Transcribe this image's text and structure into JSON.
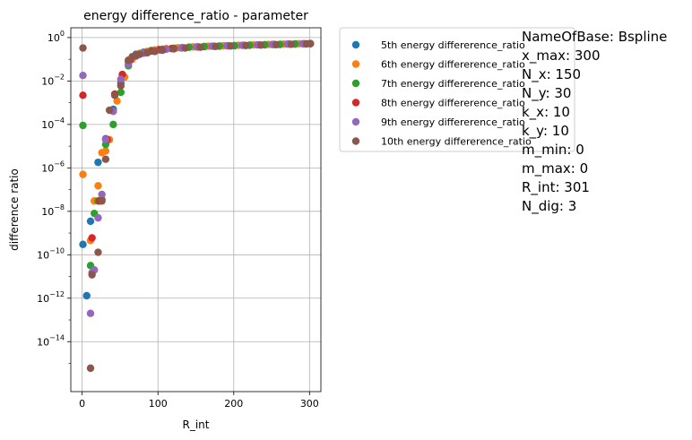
{
  "chart_data": {
    "type": "scatter",
    "title": "energy difference_ratio - parameter",
    "xlabel": "R_int",
    "ylabel": "difference ratio",
    "xlim": [
      -15,
      315
    ],
    "ylim_log10": [
      -16.3,
      0.45
    ],
    "yscale": "log",
    "grid": true,
    "legend_placement": "outside-right",
    "x_ticks": [
      0,
      100,
      200,
      300
    ],
    "x_tick_labels": [
      "0",
      "100",
      "200",
      "300"
    ],
    "y_ticks_log10": [
      0,
      -2,
      -4,
      -6,
      -8,
      -10,
      -12,
      -14
    ],
    "y_tick_labels": [
      {
        "base": "10",
        "exp": "0"
      },
      {
        "base": "10",
        "exp": "−2"
      },
      {
        "base": "10",
        "exp": "−4"
      },
      {
        "base": "10",
        "exp": "−6"
      },
      {
        "base": "10",
        "exp": "−8"
      },
      {
        "base": "10",
        "exp": "−10"
      },
      {
        "base": "10",
        "exp": "−12"
      },
      {
        "base": "10",
        "exp": "−14"
      }
    ],
    "series": [
      {
        "name": "5th energy differerence_ratio",
        "color": "#1f77b4",
        "points": [
          [
            1,
            3e-10
          ],
          [
            6,
            1.3e-12
          ],
          [
            11,
            3.5e-09
          ],
          [
            21,
            1.8e-06
          ],
          [
            31,
            2.2e-05
          ],
          [
            41,
            0.0005
          ],
          [
            51,
            0.008
          ],
          [
            61,
            0.08
          ],
          [
            71,
            0.17
          ],
          [
            81,
            0.21
          ],
          [
            91,
            0.25
          ],
          [
            101,
            0.28
          ],
          [
            111,
            0.3
          ],
          [
            121,
            0.32
          ],
          [
            131,
            0.34
          ],
          [
            141,
            0.36
          ],
          [
            161,
            0.38
          ],
          [
            181,
            0.4
          ],
          [
            201,
            0.42
          ],
          [
            221,
            0.44
          ],
          [
            241,
            0.46
          ],
          [
            261,
            0.48
          ],
          [
            281,
            0.5
          ],
          [
            301,
            0.52
          ]
        ]
      },
      {
        "name": "6th energy differerence_ratio",
        "color": "#ff7f0e",
        "points": [
          [
            1,
            5e-07
          ],
          [
            11,
            4.5e-10
          ],
          [
            16,
            3e-08
          ],
          [
            21,
            1.5e-07
          ],
          [
            26,
            5e-06
          ],
          [
            31,
            6e-06
          ],
          [
            36,
            2e-05
          ],
          [
            46,
            0.0012
          ],
          [
            56,
            0.015
          ],
          [
            66,
            0.1
          ],
          [
            76,
            0.19
          ],
          [
            86,
            0.23
          ],
          [
            96,
            0.27
          ],
          [
            111,
            0.31
          ],
          [
            126,
            0.34
          ],
          [
            146,
            0.37
          ],
          [
            166,
            0.4
          ],
          [
            186,
            0.42
          ],
          [
            206,
            0.44
          ],
          [
            226,
            0.46
          ],
          [
            246,
            0.48
          ],
          [
            266,
            0.5
          ],
          [
            286,
            0.52
          ],
          [
            301,
            0.53
          ]
        ]
      },
      {
        "name": "7th energy differerence_ratio",
        "color": "#2ca02c",
        "points": [
          [
            1,
            9e-05
          ],
          [
            11,
            3.2e-11
          ],
          [
            16,
            8e-09
          ],
          [
            21,
            3e-08
          ],
          [
            26,
            3.5e-08
          ],
          [
            31,
            1.2e-05
          ],
          [
            41,
            0.0001
          ],
          [
            51,
            0.003
          ],
          [
            61,
            0.05
          ],
          [
            71,
            0.15
          ],
          [
            81,
            0.2
          ],
          [
            91,
            0.24
          ],
          [
            106,
            0.29
          ],
          [
            121,
            0.32
          ],
          [
            141,
            0.36
          ],
          [
            161,
            0.39
          ],
          [
            181,
            0.41
          ],
          [
            201,
            0.43
          ],
          [
            221,
            0.45
          ],
          [
            241,
            0.47
          ],
          [
            261,
            0.49
          ],
          [
            281,
            0.51
          ],
          [
            301,
            0.52
          ]
        ]
      },
      {
        "name": "8th energy differerence_ratio",
        "color": "#d62728",
        "points": [
          [
            1,
            0.0022
          ],
          [
            13,
            6e-10
          ],
          [
            23,
            3e-08
          ],
          [
            33,
            2e-05
          ],
          [
            43,
            0.0025
          ],
          [
            53,
            0.02
          ],
          [
            63,
            0.09
          ],
          [
            73,
            0.16
          ],
          [
            83,
            0.2
          ],
          [
            93,
            0.24
          ],
          [
            103,
            0.27
          ],
          [
            118,
            0.31
          ],
          [
            133,
            0.34
          ],
          [
            153,
            0.37
          ],
          [
            173,
            0.4
          ],
          [
            193,
            0.42
          ],
          [
            213,
            0.44
          ],
          [
            233,
            0.46
          ],
          [
            253,
            0.48
          ],
          [
            273,
            0.5
          ],
          [
            293,
            0.52
          ],
          [
            301,
            0.53
          ]
        ]
      },
      {
        "name": "9th energy differerence_ratio",
        "color": "#9467bd",
        "points": [
          [
            1,
            0.018
          ],
          [
            11,
            2e-13
          ],
          [
            13,
            1.5e-11
          ],
          [
            16,
            2e-11
          ],
          [
            21,
            5e-09
          ],
          [
            26,
            6e-08
          ],
          [
            31,
            2e-05
          ],
          [
            41,
            0.0004
          ],
          [
            51,
            0.012
          ],
          [
            61,
            0.06
          ],
          [
            71,
            0.14
          ],
          [
            81,
            0.19
          ],
          [
            96,
            0.24
          ],
          [
            111,
            0.29
          ],
          [
            131,
            0.33
          ],
          [
            151,
            0.37
          ],
          [
            171,
            0.4
          ],
          [
            191,
            0.42
          ],
          [
            211,
            0.44
          ],
          [
            231,
            0.46
          ],
          [
            251,
            0.48
          ],
          [
            271,
            0.5
          ],
          [
            291,
            0.52
          ],
          [
            301,
            0.53
          ]
        ]
      },
      {
        "name": "10th energy differerence_ratio",
        "color": "#8c564b",
        "points": [
          [
            1,
            0.33
          ],
          [
            11,
            6e-16
          ],
          [
            13,
            1.2e-11
          ],
          [
            21,
            1.3e-10
          ],
          [
            26,
            3e-08
          ],
          [
            31,
            2.5e-06
          ],
          [
            36,
            0.00045
          ],
          [
            43,
            0.0022
          ],
          [
            51,
            0.006
          ],
          [
            61,
            0.09
          ],
          [
            66,
            0.13
          ],
          [
            71,
            0.15
          ],
          [
            76,
            0.17
          ],
          [
            86,
            0.2
          ],
          [
            96,
            0.23
          ],
          [
            106,
            0.26
          ],
          [
            121,
            0.3
          ],
          [
            136,
            0.33
          ],
          [
            156,
            0.36
          ],
          [
            176,
            0.39
          ],
          [
            196,
            0.41
          ],
          [
            216,
            0.43
          ],
          [
            236,
            0.45
          ],
          [
            256,
            0.47
          ],
          [
            276,
            0.49
          ],
          [
            296,
            0.51
          ],
          [
            301,
            0.52
          ]
        ]
      }
    ],
    "annotation_lines": [
      "NameOfBase: Bspline",
      "x_max: 300",
      "N_x: 150",
      "N_y: 30",
      "k_x: 10",
      "k_y: 10",
      "m_min: 0",
      "m_max: 0",
      "R_int: 301",
      "N_dig: 3"
    ]
  }
}
